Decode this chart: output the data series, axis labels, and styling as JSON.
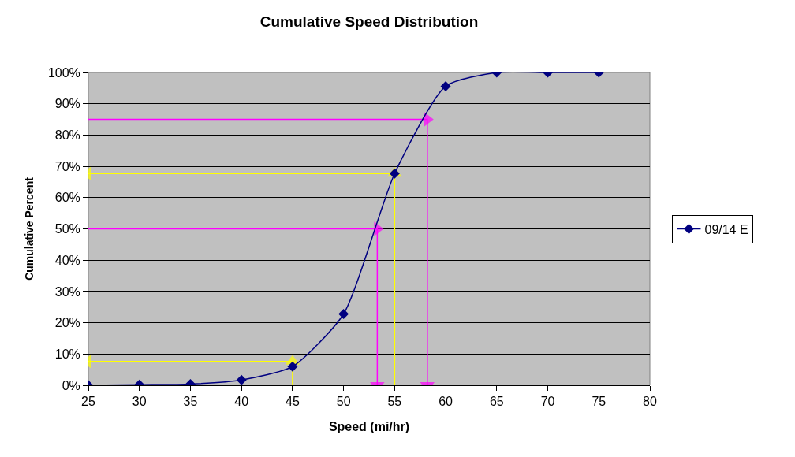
{
  "chart_data": {
    "type": "line",
    "title": "Cumulative Speed Distribution",
    "xlabel": "Speed (mi/hr)",
    "ylabel": "Cumulative Percent",
    "x": [
      25,
      30,
      35,
      40,
      45,
      50,
      55,
      60,
      65,
      70,
      75
    ],
    "series": [
      {
        "name": "09/14 E",
        "color": "#000080",
        "values": [
          0,
          0.2,
          0.4,
          1.7,
          6,
          22.8,
          67.7,
          95.6,
          100,
          100,
          100
        ],
        "marker": "diamond"
      },
      {
        "color": "#ff00ff",
        "x": [
          25,
          58.2,
          58.2
        ],
        "values": [
          85,
          85,
          0
        ],
        "marker": "triangle"
      },
      {
        "color": "#ff00ff",
        "x": [
          25,
          53.3,
          53.3
        ],
        "values": [
          50,
          50,
          0
        ],
        "marker": "triangle"
      },
      {
        "color": "#ffff00",
        "x": [
          55,
          55,
          25
        ],
        "values": [
          0,
          67.7,
          67.7
        ],
        "marker": "triangle"
      },
      {
        "color": "#ffff00",
        "x": [
          45,
          45,
          25
        ],
        "values": [
          0,
          7.6,
          7.6
        ],
        "marker": "triangle"
      }
    ],
    "xlim": [
      25,
      80
    ],
    "xticks": [
      25,
      30,
      35,
      40,
      45,
      50,
      55,
      60,
      65,
      70,
      75,
      80
    ],
    "ylim": [
      0,
      100
    ],
    "yticks": [
      {
        "value": 0,
        "label": "0%"
      },
      {
        "value": 10,
        "label": "10%"
      },
      {
        "value": 20,
        "label": "20%"
      },
      {
        "value": 30,
        "label": "30%"
      },
      {
        "value": 40,
        "label": "40%"
      },
      {
        "value": 50,
        "label": "50%"
      },
      {
        "value": 60,
        "label": "60%"
      },
      {
        "value": 70,
        "label": "70%"
      },
      {
        "value": 80,
        "label": "80%"
      },
      {
        "value": 90,
        "label": "90%"
      },
      {
        "value": 100,
        "label": "100%"
      }
    ],
    "grid": "y",
    "legend": "right"
  }
}
